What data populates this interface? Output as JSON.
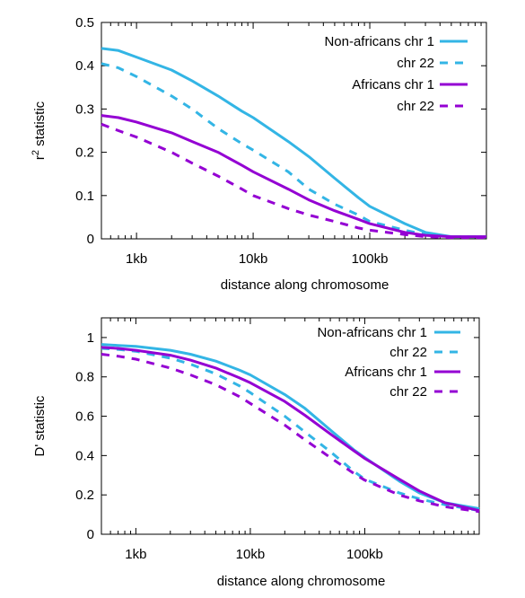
{
  "chart_data": [
    {
      "type": "line",
      "xlabel": "distance along chromosome",
      "ylabel_base": "r",
      "ylabel_sup": "2",
      "ylabel_rest": " statistic",
      "x_scale": "log",
      "xlim": [
        500,
        1000000
      ],
      "ylim": [
        0,
        0.5
      ],
      "x_ticks": [
        {
          "value": 1000,
          "label": "1kb"
        },
        {
          "value": 10000,
          "label": "10kb"
        },
        {
          "value": 100000,
          "label": "100kb"
        }
      ],
      "y_ticks": [
        {
          "value": 0,
          "label": "0"
        },
        {
          "value": 0.1,
          "label": "0.1"
        },
        {
          "value": 0.2,
          "label": "0.2"
        },
        {
          "value": 0.3,
          "label": "0.3"
        },
        {
          "value": 0.4,
          "label": "0.4"
        },
        {
          "value": 0.5,
          "label": "0.5"
        }
      ],
      "legend_position": "top-right",
      "series": [
        {
          "name": "Non-africans chr 1",
          "color": "#33b5e5",
          "dash": "solid",
          "x": [
            500,
            700,
            1000,
            2000,
            3000,
            5000,
            8000,
            10000,
            20000,
            30000,
            50000,
            80000,
            100000,
            200000,
            300000,
            500000,
            1000000
          ],
          "y": [
            0.44,
            0.435,
            0.42,
            0.39,
            0.365,
            0.33,
            0.295,
            0.28,
            0.225,
            0.19,
            0.14,
            0.095,
            0.075,
            0.035,
            0.015,
            0.005,
            0.005
          ]
        },
        {
          "name": "chr 22",
          "color": "#33b5e5",
          "dash": "dashed",
          "x": [
            500,
            700,
            1000,
            2000,
            3000,
            5000,
            8000,
            10000,
            20000,
            30000,
            50000,
            80000,
            100000,
            200000,
            300000,
            500000,
            1000000
          ],
          "y": [
            0.405,
            0.395,
            0.375,
            0.33,
            0.3,
            0.255,
            0.22,
            0.205,
            0.155,
            0.115,
            0.08,
            0.055,
            0.04,
            0.02,
            0.01,
            0.005,
            0.005
          ]
        },
        {
          "name": "Africans chr 1",
          "color": "#9400d3",
          "dash": "solid",
          "x": [
            500,
            700,
            1000,
            2000,
            3000,
            5000,
            8000,
            10000,
            20000,
            30000,
            50000,
            80000,
            100000,
            200000,
            300000,
            500000,
            1000000
          ],
          "y": [
            0.285,
            0.28,
            0.27,
            0.245,
            0.225,
            0.2,
            0.17,
            0.155,
            0.115,
            0.09,
            0.065,
            0.045,
            0.035,
            0.015,
            0.008,
            0.005,
            0.005
          ]
        },
        {
          "name": "chr 22",
          "color": "#9400d3",
          "dash": "dashed",
          "x": [
            500,
            700,
            1000,
            2000,
            3000,
            5000,
            8000,
            10000,
            20000,
            30000,
            50000,
            80000,
            100000,
            200000,
            300000,
            500000,
            1000000
          ],
          "y": [
            0.265,
            0.25,
            0.235,
            0.2,
            0.175,
            0.145,
            0.115,
            0.1,
            0.07,
            0.055,
            0.04,
            0.025,
            0.02,
            0.01,
            0.005,
            0.003,
            0.003
          ]
        }
      ]
    },
    {
      "type": "line",
      "xlabel": "distance along chromosome",
      "ylabel_base": "D'",
      "ylabel_sup": "",
      "ylabel_rest": " statistic",
      "x_scale": "log",
      "xlim": [
        500,
        1000000
      ],
      "ylim": [
        0,
        1.1
      ],
      "x_ticks": [
        {
          "value": 1000,
          "label": "1kb"
        },
        {
          "value": 10000,
          "label": "10kb"
        },
        {
          "value": 100000,
          "label": "100kb"
        }
      ],
      "y_ticks": [
        {
          "value": 0,
          "label": "0"
        },
        {
          "value": 0.2,
          "label": "0.2"
        },
        {
          "value": 0.4,
          "label": "0.4"
        },
        {
          "value": 0.6,
          "label": "0.6"
        },
        {
          "value": 0.8,
          "label": "0.8"
        },
        {
          "value": 1,
          "label": "1"
        }
      ],
      "legend_position": "top-right",
      "series": [
        {
          "name": "Non-africans chr 1",
          "color": "#33b5e5",
          "dash": "solid",
          "x": [
            500,
            700,
            1000,
            2000,
            3000,
            5000,
            8000,
            10000,
            20000,
            30000,
            50000,
            80000,
            100000,
            200000,
            300000,
            500000,
            1000000
          ],
          "y": [
            0.965,
            0.96,
            0.955,
            0.935,
            0.915,
            0.88,
            0.835,
            0.81,
            0.71,
            0.64,
            0.53,
            0.43,
            0.39,
            0.27,
            0.21,
            0.16,
            0.13
          ]
        },
        {
          "name": "chr 22",
          "color": "#33b5e5",
          "dash": "dashed",
          "x": [
            500,
            700,
            1000,
            2000,
            3000,
            5000,
            8000,
            10000,
            20000,
            30000,
            50000,
            80000,
            100000,
            200000,
            300000,
            500000,
            1000000
          ],
          "y": [
            0.945,
            0.94,
            0.93,
            0.895,
            0.865,
            0.815,
            0.755,
            0.72,
            0.6,
            0.52,
            0.42,
            0.32,
            0.28,
            0.21,
            0.18,
            0.15,
            0.12
          ]
        },
        {
          "name": "Africans chr 1",
          "color": "#9400d3",
          "dash": "solid",
          "x": [
            500,
            700,
            1000,
            2000,
            3000,
            5000,
            8000,
            10000,
            20000,
            30000,
            50000,
            80000,
            100000,
            200000,
            300000,
            500000,
            1000000
          ],
          "y": [
            0.95,
            0.945,
            0.935,
            0.91,
            0.885,
            0.845,
            0.795,
            0.77,
            0.675,
            0.605,
            0.51,
            0.425,
            0.385,
            0.28,
            0.22,
            0.16,
            0.12
          ]
        },
        {
          "name": "chr 22",
          "color": "#9400d3",
          "dash": "dashed",
          "x": [
            500,
            700,
            1000,
            2000,
            3000,
            5000,
            8000,
            10000,
            20000,
            30000,
            50000,
            80000,
            100000,
            200000,
            300000,
            500000,
            1000000
          ],
          "y": [
            0.915,
            0.905,
            0.89,
            0.845,
            0.81,
            0.76,
            0.7,
            0.665,
            0.555,
            0.48,
            0.39,
            0.31,
            0.275,
            0.2,
            0.17,
            0.14,
            0.115
          ]
        }
      ]
    }
  ]
}
